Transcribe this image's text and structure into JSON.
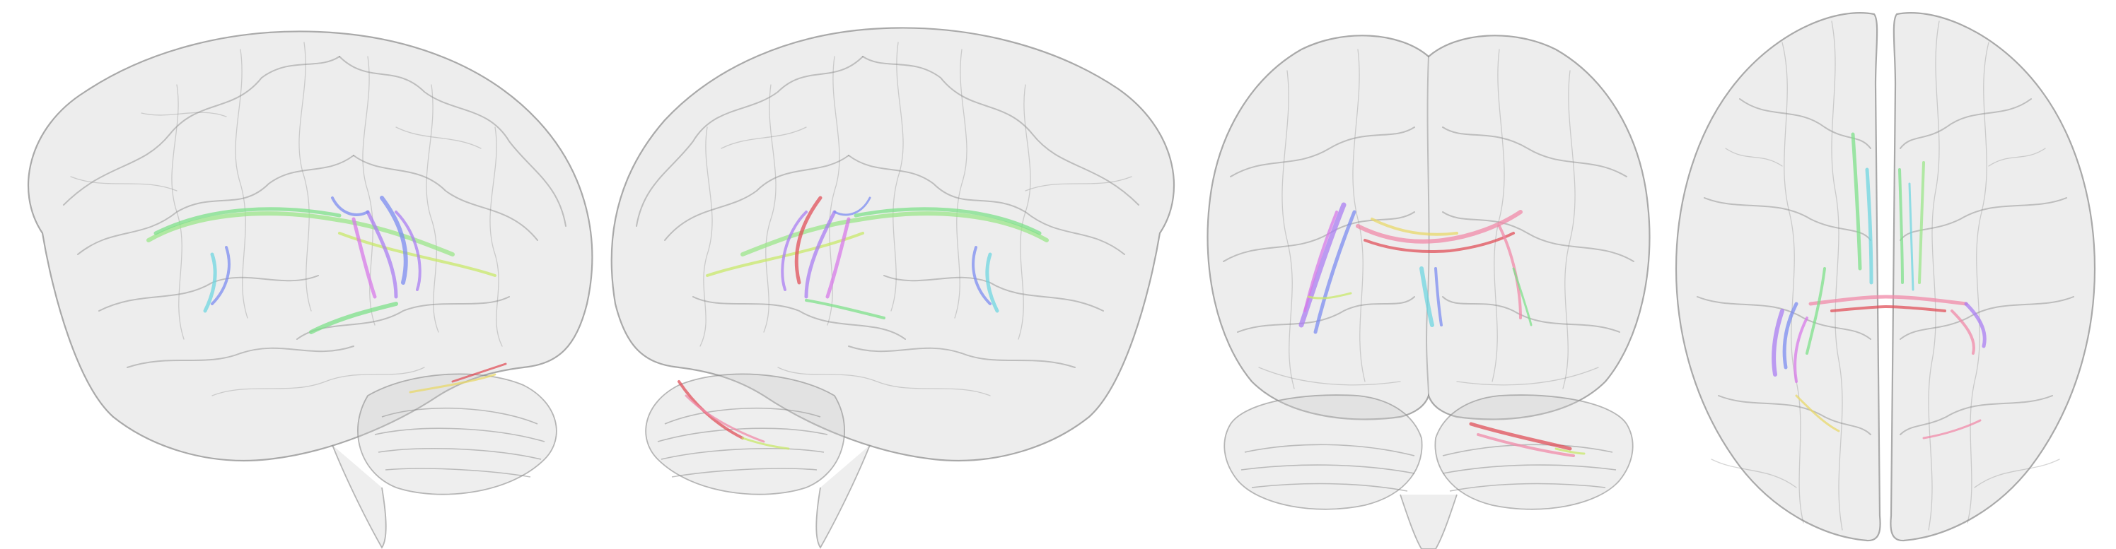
{
  "figure": {
    "views": [
      {
        "id": "left-lateral"
      },
      {
        "id": "right-lateral"
      },
      {
        "id": "posterior"
      },
      {
        "id": "superior"
      }
    ],
    "colors": {
      "background": "#ffffff",
      "glass_brain": "#d8d8d8",
      "glass_outline": "#8f8f8f",
      "fiber_green": "#7ee08a",
      "fiber_yellow_green": "#c8e86a",
      "fiber_cyan": "#6fd6e0",
      "fiber_blue": "#7c8cf0",
      "fiber_violet": "#a97ef2",
      "fiber_magenta": "#d77ae8",
      "fiber_pink": "#f08aa8",
      "fiber_red": "#e0505a",
      "fiber_yellow": "#e8d86a"
    }
  }
}
